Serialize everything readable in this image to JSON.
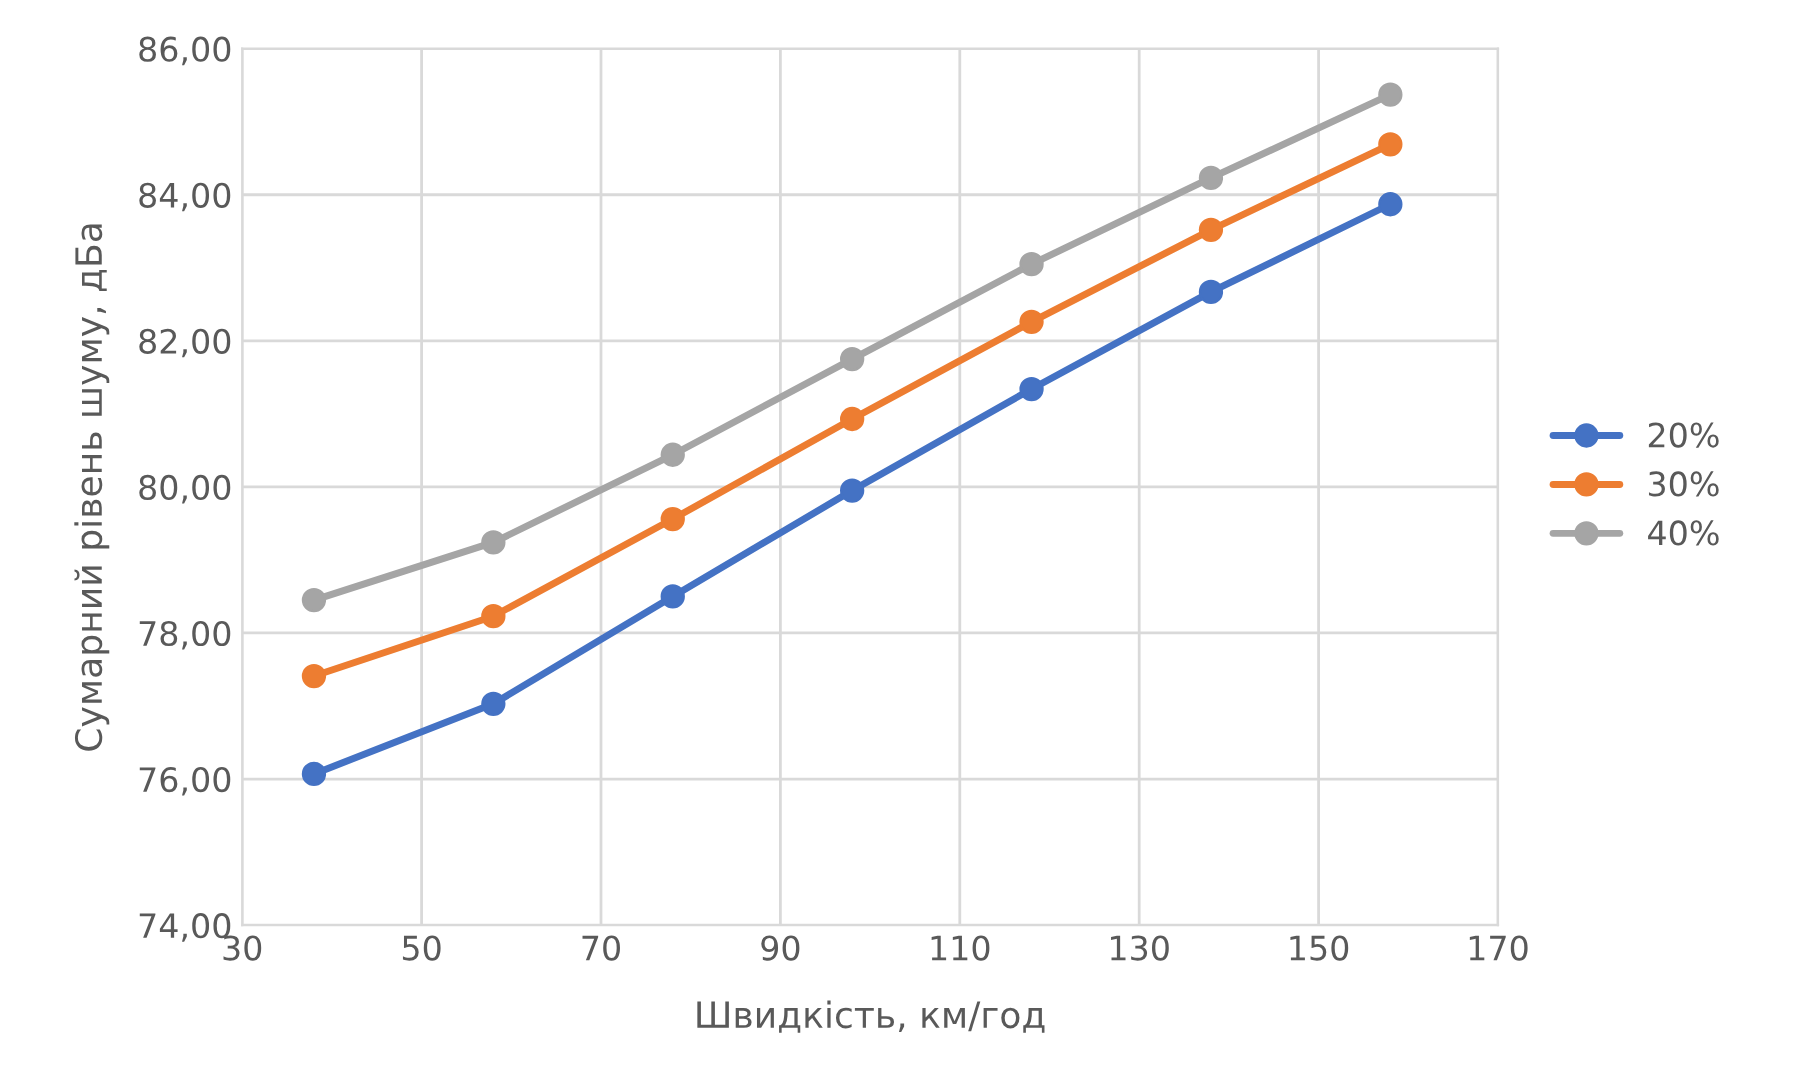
{
  "chart_data": {
    "type": "line",
    "xlabel": "Швидкість, км/год",
    "ylabel": "Сумарний рівень шуму, дБа",
    "x": [
      38,
      58,
      78,
      98,
      118,
      138,
      158
    ],
    "series": [
      {
        "name": "20%",
        "color": "#4472c4",
        "values": [
          76.07,
          77.03,
          78.5,
          79.95,
          81.34,
          82.67,
          83.87
        ]
      },
      {
        "name": "30%",
        "color": "#ed7d31",
        "values": [
          77.41,
          78.23,
          79.56,
          80.93,
          82.26,
          83.52,
          84.69
        ]
      },
      {
        "name": "40%",
        "color": "#a5a5a5",
        "values": [
          78.45,
          79.24,
          80.44,
          81.75,
          83.05,
          84.23,
          85.37
        ]
      }
    ],
    "xlim": [
      30,
      170
    ],
    "xticks": [
      30,
      50,
      70,
      90,
      110,
      130,
      150,
      170
    ],
    "ylim": [
      74,
      86
    ],
    "yticks": [
      {
        "value": 74,
        "label": "74,00"
      },
      {
        "value": 76,
        "label": "76,00"
      },
      {
        "value": 78,
        "label": "78,00"
      },
      {
        "value": 80,
        "label": "80,00"
      },
      {
        "value": 82,
        "label": "82,00"
      },
      {
        "value": 84,
        "label": "84,00"
      },
      {
        "value": 86,
        "label": "86,00"
      }
    ],
    "grid": true,
    "legend": "right",
    "marker": "circle",
    "line_style": "solid"
  }
}
